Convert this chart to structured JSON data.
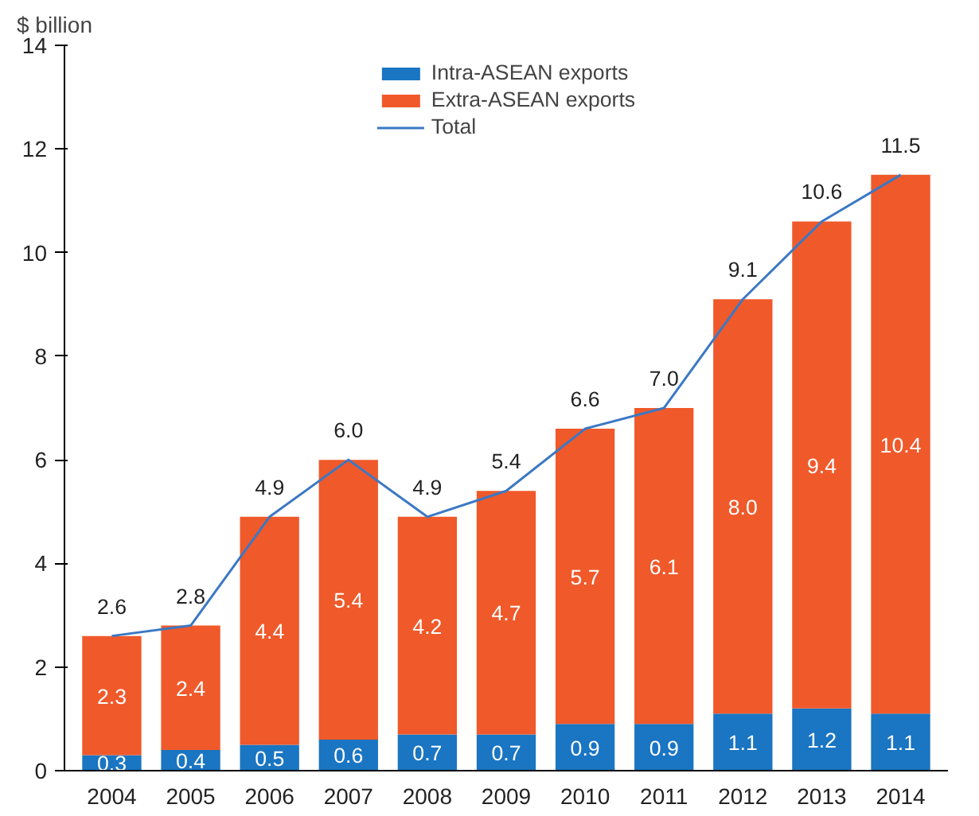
{
  "chart_data": {
    "type": "bar",
    "stacked": true,
    "ylabel": "$ billion",
    "categories": [
      "2004",
      "2005",
      "2006",
      "2007",
      "2008",
      "2009",
      "2010",
      "2011",
      "2012",
      "2013",
      "2014"
    ],
    "series": [
      {
        "name": "Intra-ASEAN exports",
        "color": "#1a75c2",
        "values": [
          0.3,
          0.4,
          0.5,
          0.6,
          0.7,
          0.7,
          0.9,
          0.9,
          1.1,
          1.2,
          1.1
        ],
        "value_labels": [
          "0.3",
          "0.4",
          "0.5",
          "0.6",
          "0.7",
          "0.7",
          "0.9",
          "0.9",
          "1.1",
          "1.2",
          "1.1"
        ]
      },
      {
        "name": "Extra-ASEAN exports",
        "color": "#f0592a",
        "values": [
          2.3,
          2.4,
          4.4,
          5.4,
          4.2,
          4.7,
          5.7,
          6.1,
          8.0,
          9.4,
          10.4
        ],
        "value_labels": [
          "2.3",
          "2.4",
          "4.4",
          "5.4",
          "4.2",
          "4.7",
          "5.7",
          "6.1",
          "8.0",
          "9.4",
          "10.4"
        ]
      },
      {
        "name": "Total",
        "type": "line",
        "color": "#3b78c4",
        "values": [
          2.6,
          2.8,
          4.9,
          6.0,
          4.9,
          5.4,
          6.6,
          7.0,
          9.1,
          10.6,
          11.5
        ],
        "value_labels": [
          "2.6",
          "2.8",
          "4.9",
          "6.0",
          "4.9",
          "5.4",
          "6.6",
          "7.0",
          "9.1",
          "10.6",
          "11.5"
        ]
      }
    ],
    "ylim": [
      0,
      14
    ],
    "yticks": [
      0,
      2,
      4,
      6,
      8,
      10,
      12,
      14
    ],
    "grid": false,
    "legend": "top",
    "marker": "none",
    "line_style": "solid"
  }
}
